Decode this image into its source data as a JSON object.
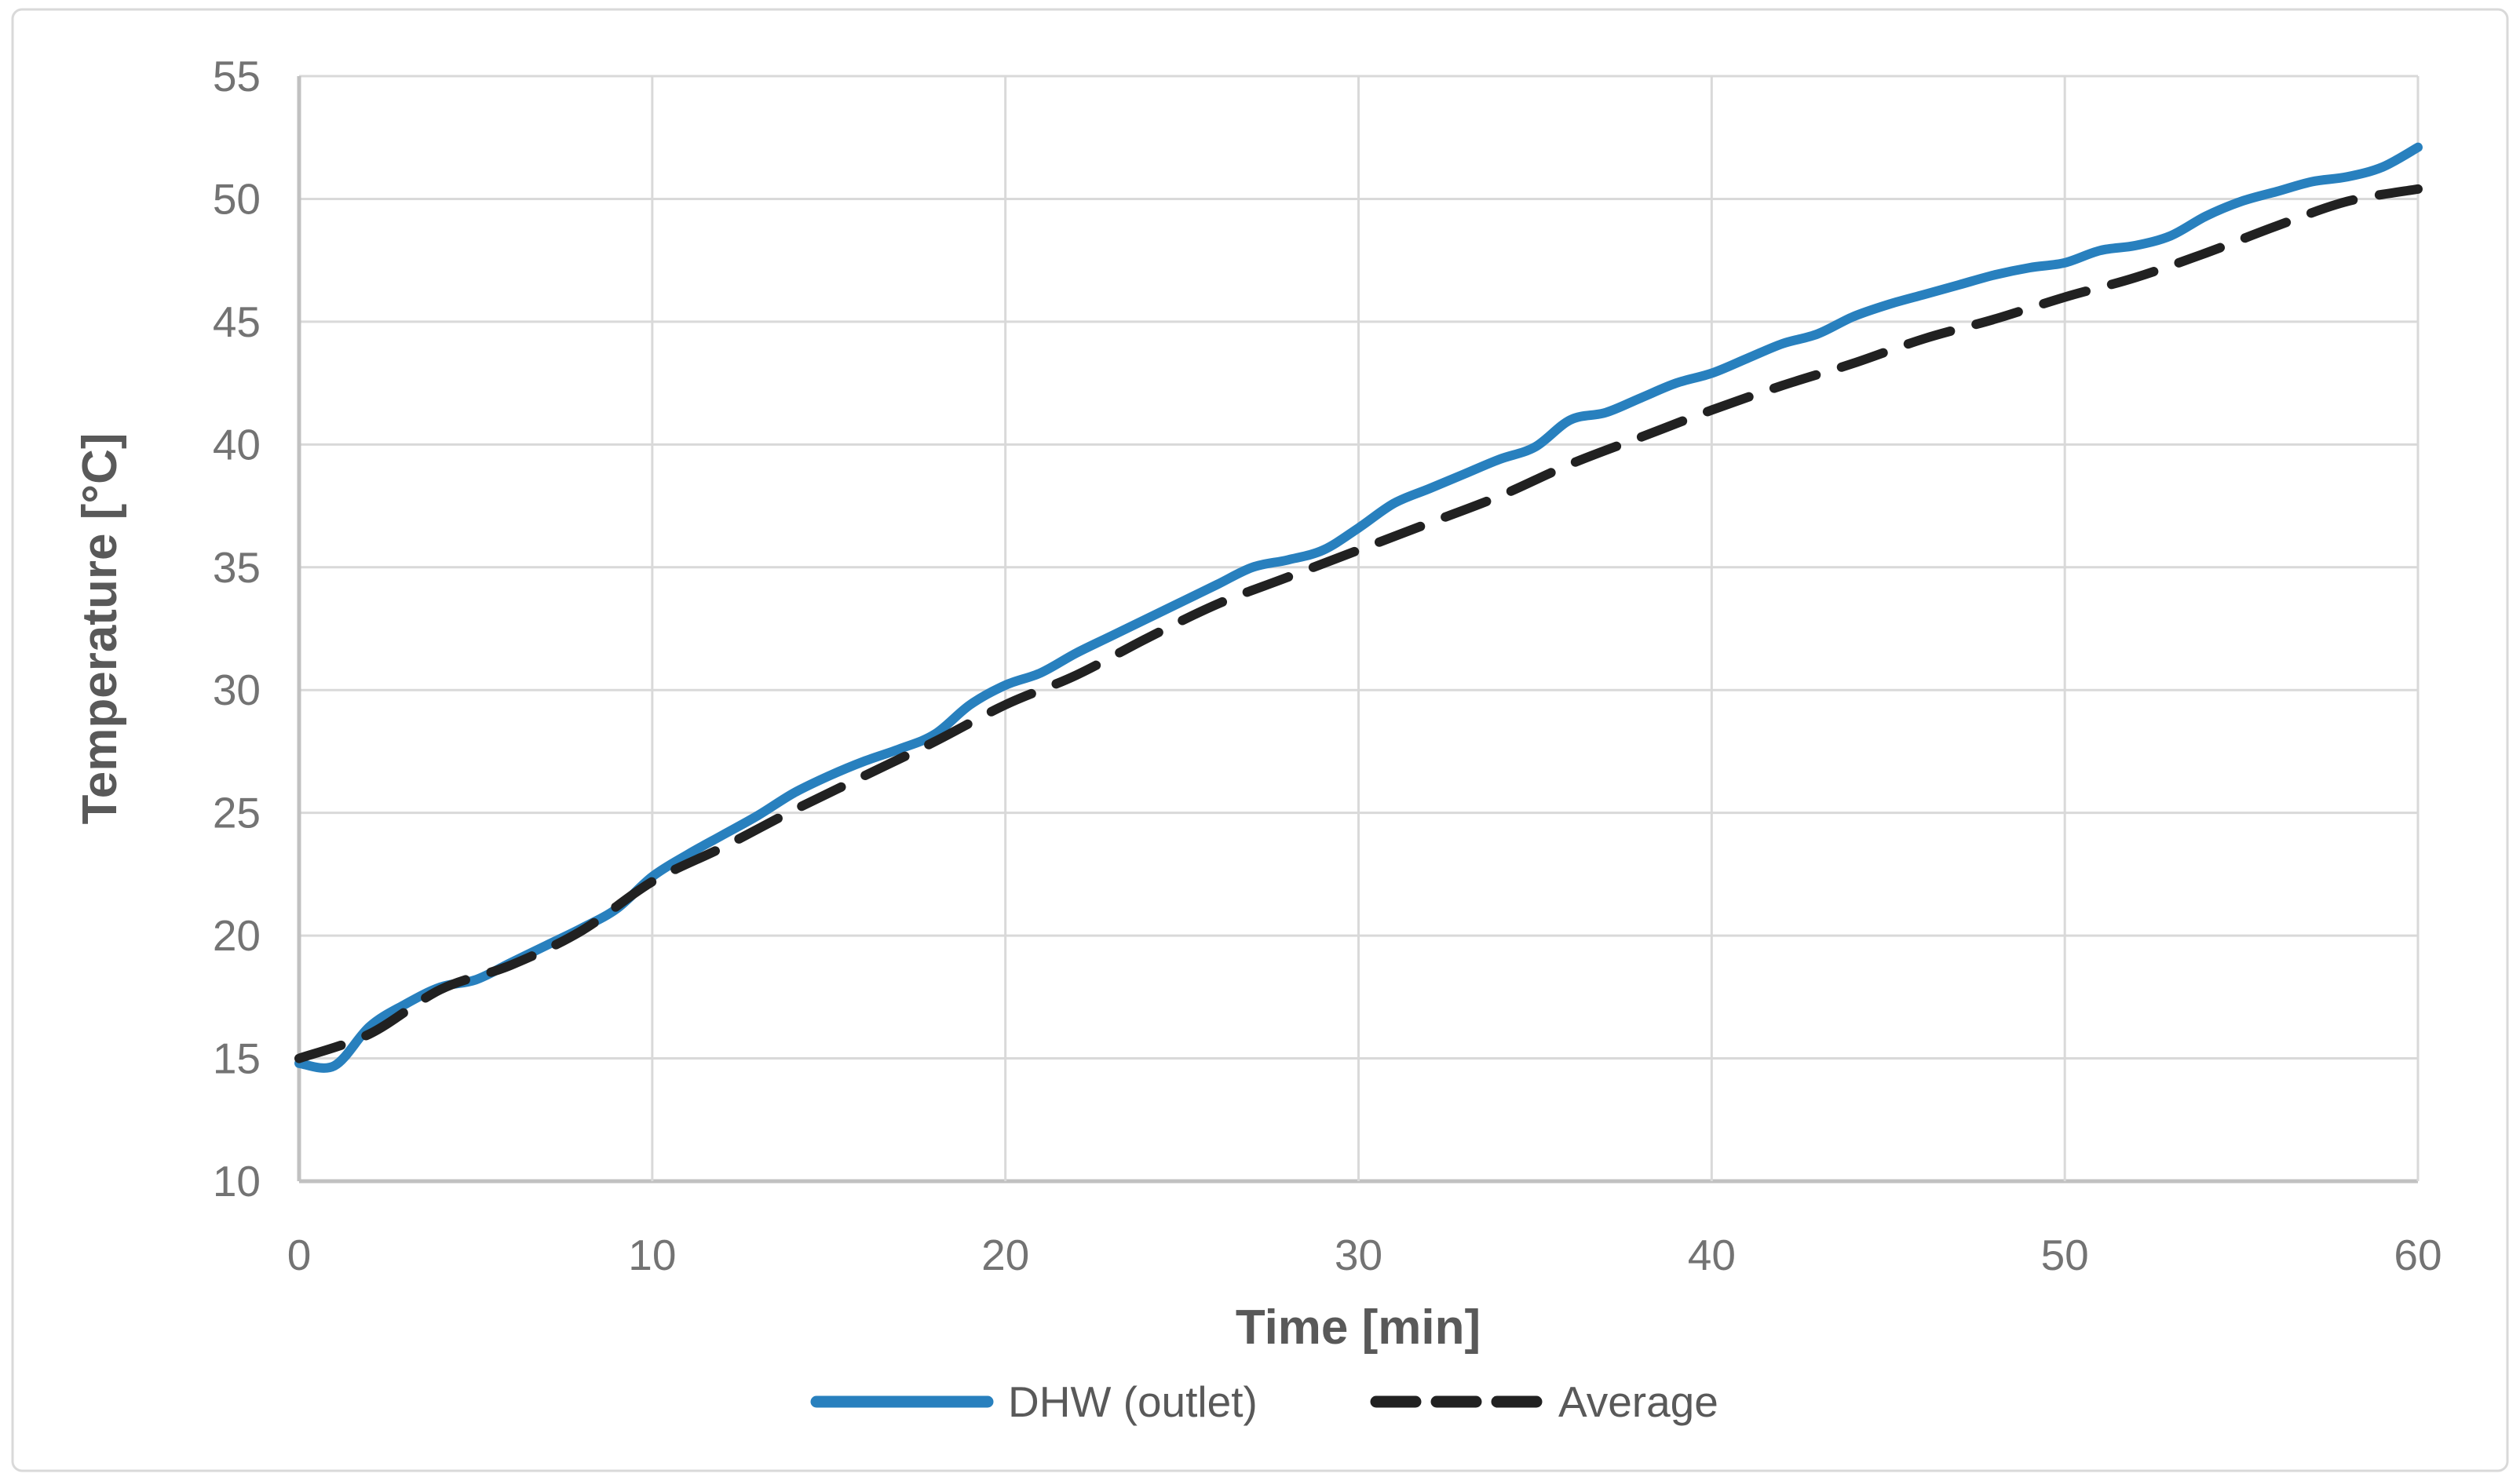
{
  "chart": {
    "background_color": "#FFFFFF",
    "border_color": "#D9D9D9",
    "gridline_color": "#D9D9D9",
    "axis_line_color": "#C1C1C1",
    "tick_label_color": "#737373",
    "title_color": "#595959",
    "legend_text_color": "#595959"
  },
  "chart_data": {
    "type": "line",
    "title": "",
    "xlabel": "Time [min]",
    "ylabel": "Temperature [°C]",
    "xlim": [
      0,
      60
    ],
    "ylim": [
      10,
      55
    ],
    "xticks": [
      0,
      10,
      20,
      30,
      40,
      50,
      60
    ],
    "yticks": [
      10,
      15,
      20,
      25,
      30,
      35,
      40,
      45,
      50,
      55
    ],
    "grid": true,
    "legend_position": "bottom-center",
    "series": [
      {
        "name": "DHW (outlet)",
        "color": "#2880BE",
        "style": "solid",
        "width": 12,
        "x": [
          0,
          1,
          2,
          3,
          4,
          5,
          6,
          7,
          8,
          9,
          10,
          11,
          12,
          13,
          14,
          15,
          16,
          17,
          18,
          19,
          20,
          21,
          22,
          23,
          24,
          25,
          26,
          27,
          28,
          29,
          30,
          31,
          32,
          33,
          34,
          35,
          36,
          37,
          38,
          39,
          40,
          41,
          42,
          43,
          44,
          45,
          46,
          47,
          48,
          49,
          50,
          51,
          52,
          53,
          54,
          55,
          56,
          57,
          58,
          59,
          60
        ],
        "y": [
          14.8,
          14.7,
          16.3,
          17.2,
          17.9,
          18.2,
          18.9,
          19.6,
          20.3,
          21.1,
          22.4,
          23.3,
          24.1,
          24.9,
          25.8,
          26.5,
          27.1,
          27.6,
          28.2,
          29.4,
          30.2,
          30.7,
          31.5,
          32.2,
          32.9,
          33.6,
          34.3,
          35.0,
          35.3,
          35.7,
          36.6,
          37.6,
          38.2,
          38.8,
          39.4,
          39.9,
          41.0,
          41.3,
          41.9,
          42.5,
          42.9,
          43.5,
          44.1,
          44.5,
          45.2,
          45.7,
          46.1,
          46.5,
          46.9,
          47.2,
          47.4,
          47.9,
          48.1,
          48.5,
          49.3,
          49.9,
          50.3,
          50.7,
          50.9,
          51.3,
          52.1
        ]
      },
      {
        "name": "Average",
        "color": "#212121",
        "style": "dashed",
        "width": 12,
        "x": [
          0,
          2,
          4,
          6,
          8,
          10,
          12,
          14,
          16,
          18,
          20,
          22,
          24,
          26,
          28,
          30,
          32,
          34,
          36,
          38,
          40,
          42,
          44,
          46,
          48,
          50,
          52,
          54,
          56,
          58,
          60
        ],
        "y": [
          15.0,
          16.0,
          17.8,
          18.8,
          20.2,
          22.2,
          23.6,
          25.1,
          26.5,
          27.9,
          29.4,
          30.6,
          32.1,
          33.5,
          34.6,
          35.7,
          36.8,
          37.9,
          39.2,
          40.3,
          41.4,
          42.4,
          43.3,
          44.3,
          45.1,
          46.0,
          46.8,
          47.8,
          48.9,
          49.9,
          50.4
        ]
      }
    ]
  }
}
